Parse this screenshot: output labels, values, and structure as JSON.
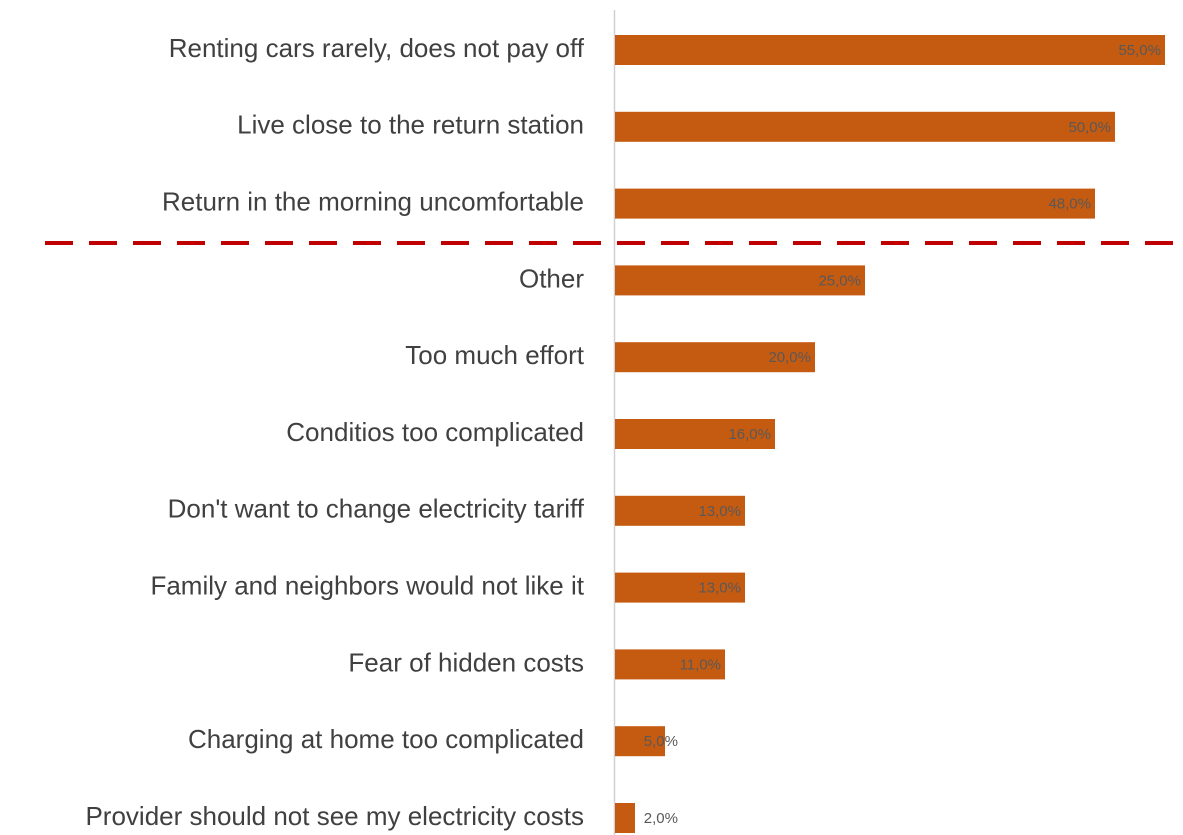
{
  "chart_data": {
    "type": "bar",
    "orientation": "horizontal",
    "categories": [
      "Renting cars rarely, does not pay off",
      "Live close to the return station",
      "Return in the morning uncomfortable",
      "Other",
      "Too much effort",
      "Conditios too complicated",
      "Don't want to change electricity tariff",
      "Family and neighbors would not like it",
      "Fear of hidden costs",
      "Charging at home too complicated",
      "Provider should not see my electricity costs"
    ],
    "values": [
      55,
      50,
      48,
      25,
      20,
      16,
      13,
      13,
      11,
      5,
      2
    ],
    "value_labels": [
      "55,0%",
      "50,0%",
      "48,0%",
      "25,0%",
      "20,0%",
      "16,0%",
      "13,0%",
      "13,0%",
      "11,0%",
      "5,0%",
      "2,0%"
    ],
    "color": "#c55a11"
  }
}
